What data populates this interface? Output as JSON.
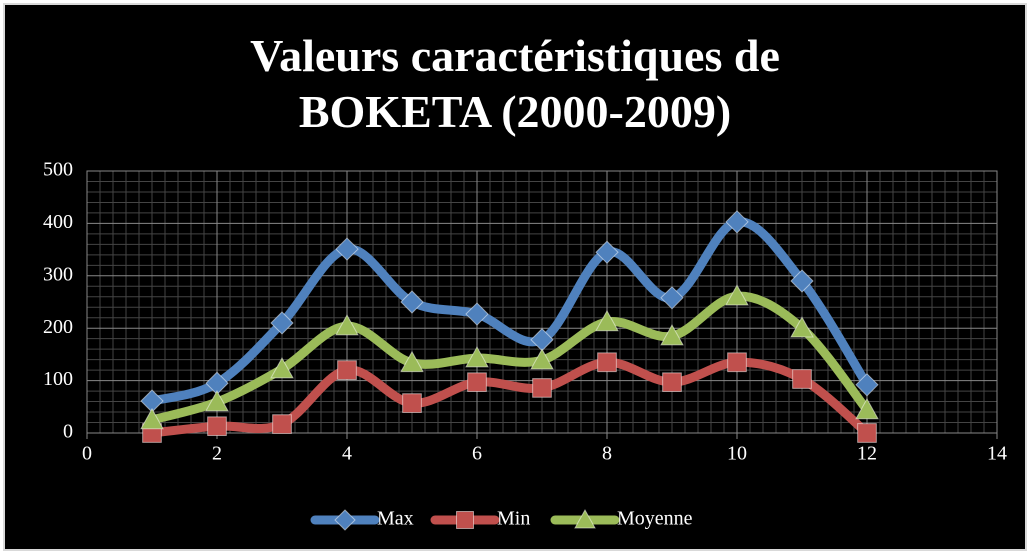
{
  "chart_data": {
    "type": "scatter-smooth",
    "title": "Valeurs caractéristiques de BOKETA (2000-2009)",
    "x": [
      1,
      2,
      3,
      4,
      5,
      6,
      7,
      8,
      9,
      10,
      11,
      12
    ],
    "series": [
      {
        "name": "Max",
        "color": "#4f81bd",
        "marker": "diamond",
        "values": [
          61,
          95,
          210,
          351,
          250,
          227,
          178,
          345,
          258,
          403,
          290,
          92
        ]
      },
      {
        "name": "Min",
        "color": "#c0504d",
        "marker": "square",
        "values": [
          0,
          13,
          17,
          120,
          57,
          97,
          86,
          135,
          97,
          135,
          103,
          0
        ]
      },
      {
        "name": "Moyenne",
        "color": "#9bbb59",
        "marker": "triangle",
        "values": [
          25,
          59,
          122,
          204,
          134,
          143,
          139,
          212,
          185,
          261,
          200,
          44
        ]
      }
    ],
    "xlim": [
      0,
      14
    ],
    "xticks": [
      0,
      2,
      4,
      6,
      8,
      10,
      12,
      14
    ],
    "ylim": [
      0,
      500
    ],
    "yticks": [
      0,
      100,
      200,
      300,
      400,
      500
    ],
    "grid": true,
    "legend": "bottom"
  }
}
